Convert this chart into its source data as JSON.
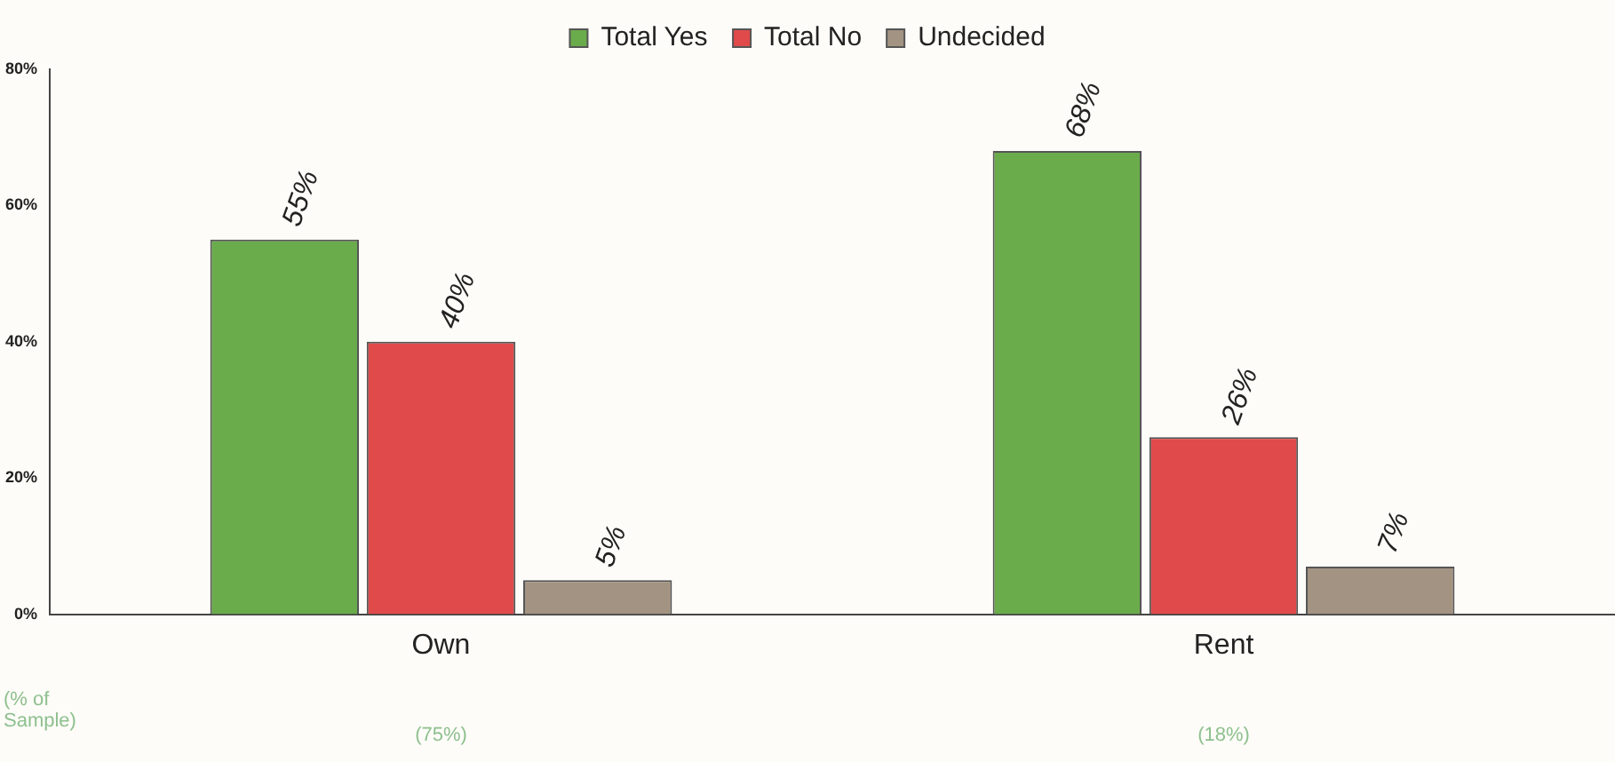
{
  "chart_data": {
    "type": "bar",
    "categories": [
      "Own",
      "Rent"
    ],
    "series": [
      {
        "name": "Total Yes",
        "color": "#6aab4c",
        "values": [
          55,
          68
        ],
        "value_labels": [
          "55%",
          "68%"
        ]
      },
      {
        "name": "Total No",
        "color": "#e04a4a",
        "values": [
          40,
          26
        ],
        "value_labels": [
          "40%",
          "26%"
        ]
      },
      {
        "name": "Undecided",
        "color": "#a39382",
        "values": [
          5,
          7
        ],
        "value_labels": [
          "5%",
          "7%"
        ]
      }
    ],
    "ylim": [
      0,
      80
    ],
    "yticks": [
      {
        "value": 0,
        "label": "0%"
      },
      {
        "value": 20,
        "label": "20%"
      },
      {
        "value": 40,
        "label": "40%"
      },
      {
        "value": 60,
        "label": "60%"
      },
      {
        "value": 80,
        "label": "80%"
      }
    ],
    "grid": false,
    "legend": "top",
    "annotations": [
      "(% of Sample)",
      "(75%)",
      "(18%)"
    ]
  }
}
